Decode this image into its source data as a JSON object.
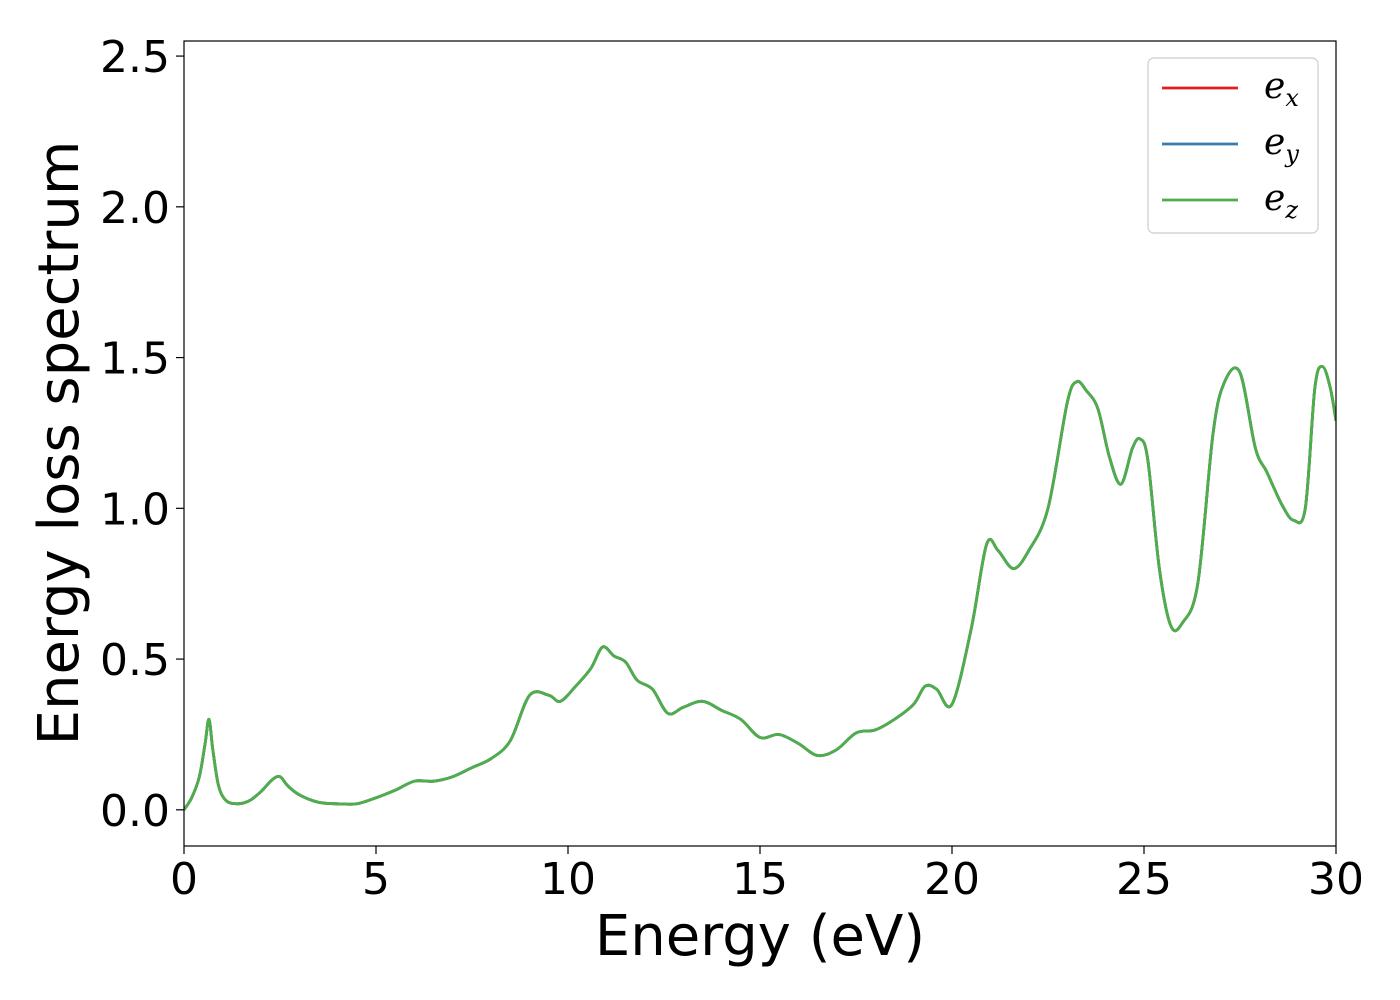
{
  "chart_data": {
    "type": "line",
    "title": "",
    "xlabel": "Energy (eV)",
    "ylabel": "Energy loss spectrum",
    "xlim": [
      0,
      30
    ],
    "ylim": [
      -0.12,
      2.55
    ],
    "xticks": [
      "0",
      "5",
      "10",
      "15",
      "20",
      "25",
      "30"
    ],
    "yticks": [
      "0.0",
      "0.5",
      "1.0",
      "1.5",
      "2.0",
      "2.5"
    ],
    "grid": false,
    "legend_position": "top-right",
    "x": [
      0,
      0.2,
      0.4,
      0.55,
      0.65,
      0.75,
      0.9,
      1.1,
      1.4,
      1.7,
      2.0,
      2.3,
      2.5,
      2.7,
      3.0,
      3.5,
      4.0,
      4.5,
      5.0,
      5.5,
      6.0,
      6.5,
      7.0,
      7.5,
      8.0,
      8.5,
      9.0,
      9.5,
      9.8,
      10.2,
      10.6,
      10.9,
      11.2,
      11.5,
      11.8,
      12.2,
      12.6,
      13.0,
      13.5,
      14.0,
      14.5,
      15.0,
      15.5,
      16.0,
      16.5,
      17.0,
      17.5,
      18.0,
      18.5,
      19.0,
      19.3,
      19.6,
      20.0,
      20.5,
      20.9,
      21.2,
      21.6,
      22.0,
      22.5,
      23.0,
      23.25,
      23.5,
      23.8,
      24.1,
      24.4,
      24.7,
      24.9,
      25.1,
      25.4,
      25.7,
      26.0,
      26.4,
      26.8,
      27.1,
      27.5,
      27.9,
      28.2,
      28.6,
      28.9,
      29.2,
      29.45,
      29.65,
      29.85,
      30.0
    ],
    "series": [
      {
        "name": "e_x",
        "label": "e",
        "subscript": "x",
        "color": "#e41a1c",
        "values": [
          0.0,
          0.04,
          0.11,
          0.22,
          0.3,
          0.2,
          0.08,
          0.03,
          0.02,
          0.03,
          0.06,
          0.1,
          0.11,
          0.08,
          0.05,
          0.025,
          0.02,
          0.02,
          0.04,
          0.065,
          0.095,
          0.095,
          0.11,
          0.14,
          0.17,
          0.23,
          0.38,
          0.38,
          0.36,
          0.41,
          0.47,
          0.54,
          0.51,
          0.49,
          0.43,
          0.4,
          0.32,
          0.34,
          0.36,
          0.33,
          0.3,
          0.24,
          0.25,
          0.22,
          0.18,
          0.2,
          0.255,
          0.265,
          0.3,
          0.35,
          0.41,
          0.4,
          0.35,
          0.6,
          0.88,
          0.86,
          0.8,
          0.86,
          1.0,
          1.35,
          1.42,
          1.39,
          1.33,
          1.17,
          1.08,
          1.2,
          1.23,
          1.16,
          0.8,
          0.61,
          0.62,
          0.75,
          1.25,
          1.42,
          1.45,
          1.2,
          1.12,
          1.01,
          0.96,
          1.0,
          1.4,
          1.47,
          1.4,
          1.29
        ]
      },
      {
        "name": "e_y",
        "label": "e",
        "subscript": "y",
        "color": "#377eb8",
        "values": [
          0.0,
          0.04,
          0.11,
          0.22,
          0.3,
          0.2,
          0.08,
          0.03,
          0.02,
          0.03,
          0.06,
          0.1,
          0.11,
          0.08,
          0.05,
          0.025,
          0.02,
          0.02,
          0.04,
          0.065,
          0.095,
          0.095,
          0.11,
          0.14,
          0.17,
          0.23,
          0.38,
          0.38,
          0.36,
          0.41,
          0.47,
          0.54,
          0.51,
          0.49,
          0.43,
          0.4,
          0.32,
          0.34,
          0.36,
          0.33,
          0.3,
          0.24,
          0.25,
          0.22,
          0.18,
          0.2,
          0.255,
          0.265,
          0.3,
          0.35,
          0.41,
          0.4,
          0.35,
          0.6,
          0.88,
          0.86,
          0.8,
          0.86,
          1.0,
          1.35,
          1.42,
          1.39,
          1.33,
          1.17,
          1.08,
          1.2,
          1.23,
          1.16,
          0.8,
          0.61,
          0.62,
          0.75,
          1.25,
          1.42,
          1.45,
          1.2,
          1.12,
          1.01,
          0.96,
          1.0,
          1.4,
          1.47,
          1.4,
          1.29
        ]
      },
      {
        "name": "e_z",
        "label": "e",
        "subscript": "z",
        "color": "#4daf4a",
        "values": [
          0.0,
          0.04,
          0.11,
          0.22,
          0.3,
          0.2,
          0.08,
          0.03,
          0.02,
          0.03,
          0.06,
          0.1,
          0.11,
          0.08,
          0.05,
          0.025,
          0.02,
          0.02,
          0.04,
          0.065,
          0.095,
          0.095,
          0.11,
          0.14,
          0.17,
          0.23,
          0.38,
          0.38,
          0.36,
          0.41,
          0.47,
          0.54,
          0.51,
          0.49,
          0.43,
          0.4,
          0.32,
          0.34,
          0.36,
          0.33,
          0.3,
          0.24,
          0.25,
          0.22,
          0.18,
          0.2,
          0.255,
          0.265,
          0.3,
          0.35,
          0.41,
          0.4,
          0.35,
          0.6,
          0.88,
          0.86,
          0.8,
          0.86,
          1.0,
          1.35,
          1.42,
          1.39,
          1.33,
          1.17,
          1.08,
          1.2,
          1.23,
          1.16,
          0.8,
          0.61,
          0.62,
          0.75,
          1.25,
          1.42,
          1.45,
          1.2,
          1.12,
          1.01,
          0.96,
          1.0,
          1.4,
          1.47,
          1.4,
          1.29
        ]
      }
    ]
  }
}
